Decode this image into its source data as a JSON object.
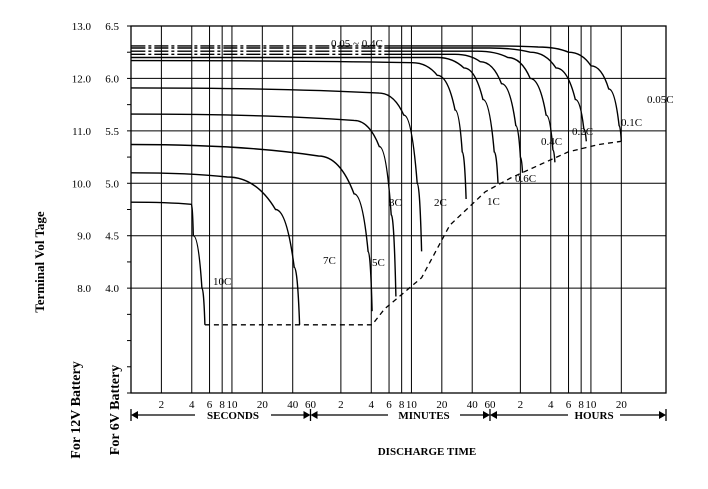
{
  "chart_data": {
    "type": "line",
    "title": "",
    "ylabel": "Terminal Vol Tage",
    "ylabel_12v": "For 12V Battery",
    "ylabel_6v": "For 6V Battery",
    "xlabel": "DISCHARGE TIME",
    "x_scale": "log",
    "grid": true,
    "y_ticks_12v": [
      "13.0",
      "12.0",
      "11.0",
      "10.0",
      "9.0",
      "8.0"
    ],
    "y_ticks_6v": [
      "6.5",
      "6.0",
      "5.5",
      "5.0",
      "4.5",
      "4.0"
    ],
    "x_tick_labels": [
      "2",
      "4",
      "6",
      "8",
      "10",
      "20",
      "40",
      "60",
      "2",
      "4",
      "6",
      "8",
      "10",
      "20",
      "40",
      "60",
      "2",
      "4",
      "6",
      "8",
      "10",
      "20"
    ],
    "x_segments": [
      {
        "label": "SECONDS",
        "range": [
          "1 s",
          "60 s"
        ]
      },
      {
        "label": "MINUTES",
        "range": [
          "1 min",
          "60 min"
        ]
      },
      {
        "label": "HOURS",
        "range": [
          "1 h",
          "20 h"
        ]
      }
    ],
    "ylim_6v": [
      3.0,
      6.5
    ],
    "series": [
      {
        "name": "0.05C",
        "time_hours": [
          0.00028,
          1.0,
          3.0,
          6.0,
          10.0,
          15.0,
          19.0,
          20.0
        ],
        "volts_6v": [
          6.31,
          6.31,
          6.3,
          6.25,
          6.12,
          5.9,
          5.55,
          5.4
        ]
      },
      {
        "name": "0.1C",
        "time_hours": [
          0.00028,
          1.0,
          2.5,
          4.5,
          7.0,
          8.5,
          9.0
        ],
        "volts_6v": [
          6.29,
          6.29,
          6.25,
          6.1,
          5.8,
          5.52,
          5.4
        ]
      },
      {
        "name": "0.2C",
        "time_hours": [
          0.00028,
          0.75,
          1.5,
          2.5,
          3.6,
          4.2,
          4.4
        ],
        "volts_6v": [
          6.26,
          6.26,
          6.2,
          6.0,
          5.65,
          5.32,
          5.2
        ]
      },
      {
        "name": "0.4C",
        "time_hours": [
          0.00028,
          0.45,
          0.8,
          1.3,
          1.8,
          2.0,
          2.1
        ],
        "volts_6v": [
          6.23,
          6.23,
          6.16,
          5.95,
          5.55,
          5.25,
          5.1
        ]
      },
      {
        "name": "0.6C",
        "time_hours": [
          0.00028,
          0.3,
          0.55,
          0.85,
          1.1,
          1.2
        ],
        "volts_6v": [
          6.2,
          6.2,
          6.1,
          5.8,
          5.3,
          5.0
        ]
      },
      {
        "name": "1C",
        "time_hours": [
          0.00028,
          0.17,
          0.3,
          0.45,
          0.53,
          0.58
        ],
        "volts_6v": [
          6.17,
          6.15,
          6.03,
          5.7,
          5.3,
          4.85
        ]
      },
      {
        "name": "2C",
        "time_hours": [
          0.00028,
          0.08,
          0.14,
          0.19,
          0.21
        ],
        "volts_6v": [
          5.91,
          5.86,
          5.65,
          5.0,
          4.35
        ]
      },
      {
        "name": "3C",
        "time_hours": [
          0.00028,
          0.045,
          0.08,
          0.105,
          0.117
        ],
        "volts_6v": [
          5.66,
          5.6,
          5.35,
          4.7,
          3.92
        ]
      },
      {
        "name": "5C",
        "time_hours": [
          0.00028,
          0.02,
          0.045,
          0.062,
          0.068
        ],
        "volts_6v": [
          5.37,
          5.26,
          4.9,
          4.35,
          3.78
        ]
      },
      {
        "name": "7C",
        "time_hours": [
          0.00028,
          0.0025,
          0.0075,
          0.0115,
          0.013
        ],
        "volts_6v": [
          5.1,
          5.06,
          4.75,
          4.2,
          3.65
        ]
      },
      {
        "name": "10C",
        "time_hours": [
          0.00028,
          0.0011,
          0.00115,
          0.0014,
          0.0015
        ],
        "volts_6v": [
          4.82,
          4.8,
          4.5,
          4.0,
          3.65
        ]
      }
    ],
    "annotations": [
      {
        "text": "0.05 ~ 0.4C"
      },
      {
        "text": "10C"
      },
      {
        "text": "7C"
      },
      {
        "text": "5C"
      },
      {
        "text": "3C"
      },
      {
        "text": "2C"
      },
      {
        "text": "1C"
      },
      {
        "text": "0.6C"
      },
      {
        "text": "0.4C"
      },
      {
        "text": "0.2C"
      },
      {
        "text": "0.1C"
      },
      {
        "text": "0.05C"
      }
    ]
  }
}
